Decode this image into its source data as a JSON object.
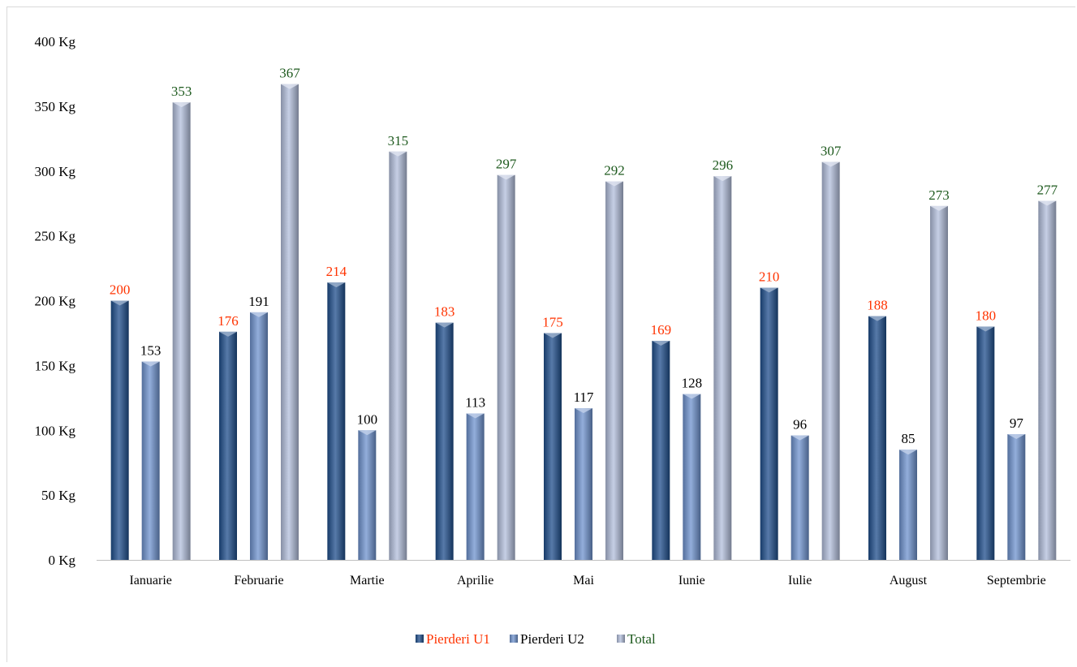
{
  "chart_data": {
    "type": "bar",
    "categories": [
      "Ianuarie",
      "Februarie",
      "Martie",
      "Aprilie",
      "Mai",
      "Iunie",
      "Iulie",
      "August",
      "Septembrie"
    ],
    "series": [
      {
        "name": "Pierderi U1",
        "values": [
          200,
          176,
          214,
          183,
          175,
          169,
          210,
          188,
          180
        ]
      },
      {
        "name": "Pierderi U2",
        "values": [
          153,
          191,
          100,
          113,
          117,
          128,
          96,
          85,
          97
        ]
      },
      {
        "name": "Total",
        "values": [
          353,
          367,
          315,
          297,
          292,
          296,
          307,
          273,
          277
        ]
      }
    ],
    "yticks": [
      "0 Kg",
      "50 Kg",
      "100 Kg",
      "150 Kg",
      "200 Kg",
      "250 Kg",
      "300 Kg",
      "350 Kg",
      "400 Kg"
    ],
    "ylim": [
      0,
      400
    ],
    "grid": false,
    "legend_position": "bottom"
  },
  "colors": {
    "series": [
      "#1f4e8c",
      "#6f93cf",
      "#b3bfdc"
    ],
    "labels": [
      "#ff3300",
      "#000000",
      "#1e5a1e"
    ],
    "legend_text": [
      "#ff3300",
      "#000000",
      "#1e5a1e"
    ],
    "axis": "#bfbfbf"
  }
}
